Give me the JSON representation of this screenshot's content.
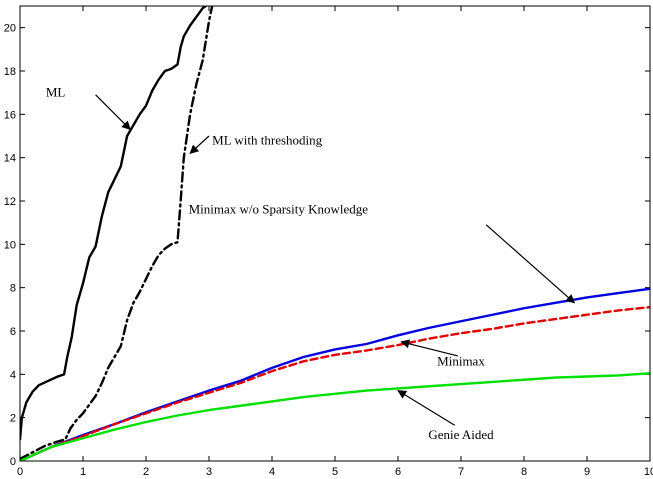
{
  "chart_data": {
    "type": "line",
    "title": "",
    "xlabel": "",
    "ylabel": "",
    "xlim": [
      0,
      10
    ],
    "ylim": [
      0,
      21
    ],
    "grid": false,
    "legend": "none",
    "x_ticks": [
      "0",
      "1",
      "2",
      "3",
      "4",
      "5",
      "6",
      "7",
      "8",
      "9",
      "10"
    ],
    "y_ticks": [
      "0",
      "2",
      "4",
      "6",
      "8",
      "10",
      "12",
      "14",
      "16",
      "18",
      "20"
    ],
    "series": [
      {
        "name": "ML",
        "color": "#000000",
        "dash": "solid",
        "x": [
          0,
          0.03,
          0.1,
          0.2,
          0.3,
          0.45,
          0.6,
          0.7,
          0.75,
          0.82,
          0.9,
          1.0,
          1.1,
          1.2,
          1.3,
          1.4,
          1.5,
          1.6,
          1.7,
          1.8,
          1.9,
          2.0,
          2.1,
          2.2,
          2.3,
          2.4,
          2.5,
          2.55,
          2.6,
          2.7,
          2.8,
          2.9,
          2.95
        ],
        "y": [
          1.0,
          2.0,
          2.7,
          3.2,
          3.5,
          3.7,
          3.9,
          4.0,
          4.8,
          5.7,
          7.2,
          8.2,
          9.4,
          9.9,
          11.3,
          12.4,
          13.0,
          13.6,
          15.0,
          15.5,
          16.0,
          16.4,
          17.1,
          17.6,
          18.0,
          18.1,
          18.3,
          19.1,
          19.6,
          20.1,
          20.5,
          20.9,
          21.0
        ]
      },
      {
        "name": "ML with threshoding",
        "color": "#000000",
        "dash": "dashdot",
        "x": [
          0,
          0.2,
          0.4,
          0.6,
          0.72,
          0.8,
          0.9,
          1.0,
          1.1,
          1.2,
          1.3,
          1.4,
          1.5,
          1.6,
          1.7,
          1.8,
          1.9,
          2.0,
          2.1,
          2.2,
          2.3,
          2.4,
          2.5,
          2.55,
          2.6,
          2.65,
          2.7,
          2.8,
          2.9,
          3.0,
          3.05
        ],
        "y": [
          0.1,
          0.4,
          0.7,
          0.9,
          1.0,
          1.5,
          1.9,
          2.2,
          2.6,
          3.0,
          3.6,
          4.3,
          4.8,
          5.3,
          6.5,
          7.3,
          7.8,
          8.4,
          9.0,
          9.5,
          9.8,
          10.0,
          10.1,
          12.0,
          14.0,
          15.0,
          16.0,
          17.4,
          18.5,
          20.3,
          21.0
        ]
      },
      {
        "name": "Minimax w/o Sparsity Knowledge",
        "color": "#0000e0",
        "dash": "solid",
        "x": [
          0,
          0.5,
          1.0,
          1.5,
          2.0,
          2.5,
          3.0,
          3.5,
          4.0,
          4.5,
          5.0,
          5.5,
          6.0,
          6.5,
          7.0,
          7.5,
          8.0,
          8.5,
          9.0,
          9.5,
          10.0
        ],
        "y": [
          0,
          0.65,
          1.2,
          1.7,
          2.25,
          2.75,
          3.25,
          3.7,
          4.3,
          4.8,
          5.15,
          5.4,
          5.8,
          6.15,
          6.45,
          6.75,
          7.05,
          7.3,
          7.55,
          7.75,
          7.95
        ]
      },
      {
        "name": "Minimax",
        "color": "#e00000",
        "dash": "dashed",
        "x": [
          0,
          0.5,
          1.0,
          1.5,
          2.0,
          2.5,
          3.0,
          3.5,
          4.0,
          4.5,
          5.0,
          5.5,
          6.0,
          6.5,
          7.0,
          7.5,
          8.0,
          8.5,
          9.0,
          9.5,
          10.0
        ],
        "y": [
          0,
          0.65,
          1.15,
          1.7,
          2.2,
          2.7,
          3.15,
          3.6,
          4.15,
          4.6,
          4.9,
          5.1,
          5.35,
          5.65,
          5.9,
          6.1,
          6.35,
          6.55,
          6.75,
          6.95,
          7.1
        ]
      },
      {
        "name": "Genie Aided",
        "color": "#00e000",
        "dash": "solid",
        "x": [
          0,
          0.5,
          1.0,
          1.5,
          2.0,
          2.5,
          3.0,
          3.5,
          4.0,
          4.5,
          5.0,
          5.5,
          6.0,
          6.5,
          7.0,
          7.5,
          8.0,
          8.5,
          9.0,
          9.5,
          10.0
        ],
        "y": [
          0,
          0.65,
          1.05,
          1.45,
          1.8,
          2.1,
          2.35,
          2.55,
          2.75,
          2.95,
          3.1,
          3.25,
          3.35,
          3.45,
          3.55,
          3.65,
          3.75,
          3.85,
          3.9,
          3.95,
          4.05
        ]
      }
    ],
    "annotations": [
      {
        "text": "ML",
        "series": "ML",
        "label_at": [
          0.72,
          17.0
        ],
        "arrow_from": [
          1.2,
          16.9
        ],
        "arrow_to": [
          1.75,
          15.3
        ],
        "anchor": "end"
      },
      {
        "text": "ML with threshoding",
        "series": "ML with threshoding",
        "label_at": [
          3.05,
          14.8
        ],
        "arrow_from": [
          3.0,
          15.0
        ],
        "arrow_to": [
          2.7,
          14.2
        ],
        "anchor": "start"
      },
      {
        "text": "Minimax w/o Sparsity Knowledge",
        "series": "Minimax w/o Sparsity Knowledge",
        "label_at": [
          4.1,
          11.6
        ],
        "arrow_from": [
          7.4,
          10.9
        ],
        "arrow_to": [
          8.8,
          7.3
        ],
        "anchor": "middle"
      },
      {
        "text": "Minimax",
        "series": "Minimax",
        "label_at": [
          7.0,
          4.6
        ],
        "arrow_from": [
          6.95,
          4.85
        ],
        "arrow_to": [
          6.05,
          5.5
        ],
        "anchor": "middle"
      },
      {
        "text": "Genie Aided",
        "series": "Genie Aided",
        "label_at": [
          7.0,
          1.2
        ],
        "arrow_from": [
          6.9,
          1.65
        ],
        "arrow_to": [
          6.0,
          3.25
        ],
        "anchor": "middle"
      }
    ]
  }
}
